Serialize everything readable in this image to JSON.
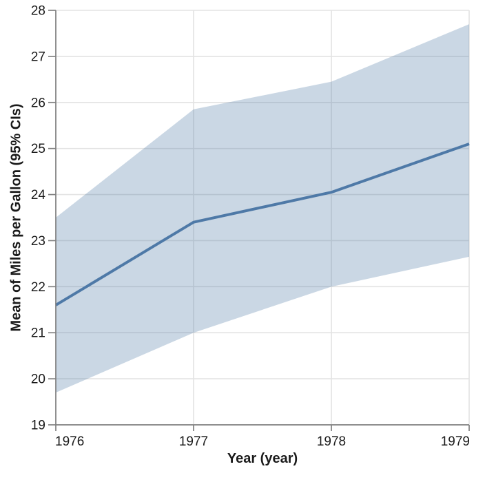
{
  "figure": {
    "background": "#FFFFFF"
  },
  "chart_data": {
    "type": "line",
    "title": "",
    "x": [
      1976,
      1977,
      1978,
      1979
    ],
    "series": [
      {
        "name": "Mean of Miles per Gallon",
        "role": "mean",
        "values": [
          21.6,
          23.4,
          24.05,
          25.1
        ]
      },
      {
        "name": "95% CI upper bound",
        "role": "ci_upper",
        "values": [
          23.5,
          25.85,
          26.45,
          27.7
        ]
      },
      {
        "name": "95% CI lower bound",
        "role": "ci_lower",
        "values": [
          19.7,
          21.0,
          22.0,
          22.65
        ]
      }
    ],
    "xlabel": "Year (year)",
    "ylabel": "Mean of Miles per Gallon (95% CIs)",
    "xlim": [
      1976,
      1979
    ],
    "ylim": [
      19,
      28
    ],
    "xticks": [
      1976,
      1977,
      1978,
      1979
    ],
    "yticks": [
      19,
      20,
      21,
      22,
      23,
      24,
      25,
      26,
      27,
      28
    ],
    "grid": true,
    "legend": "none",
    "band": true,
    "colors": {
      "line": "#4E79A7",
      "band": "#4E79A7",
      "band_opacity": 0.3,
      "grid": "#E3E3E3",
      "axis": "#808080",
      "text": "#1A1A1A"
    }
  }
}
